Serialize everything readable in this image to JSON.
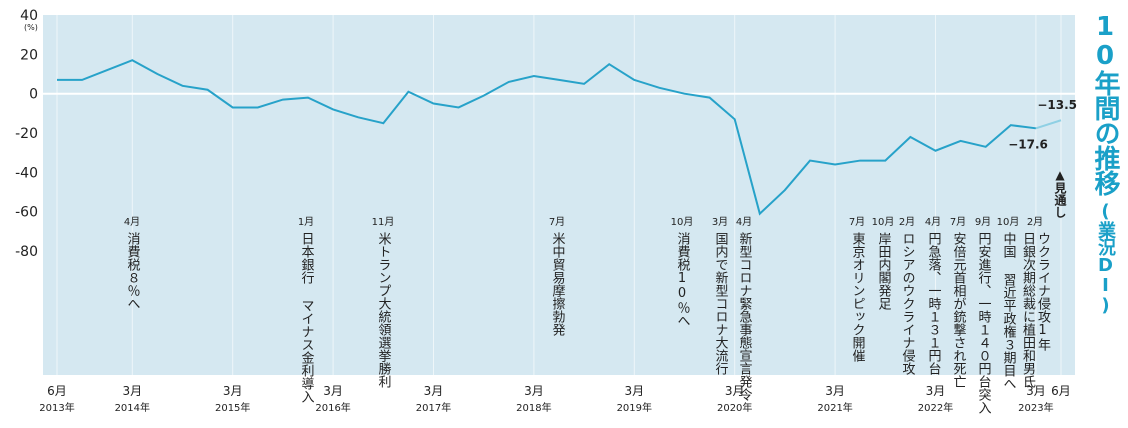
{
  "chart_data": {
    "type": "line",
    "title": "10年間の推移",
    "subtitle": "(業況DI)",
    "y_unit": "(%)",
    "annotation": "▲見通し",
    "categories": [
      "6月",
      null,
      null,
      "3月",
      null,
      null,
      null,
      "3月",
      null,
      null,
      null,
      "3月",
      null,
      null,
      null,
      "3月",
      null,
      null,
      null,
      "3月",
      null,
      null,
      null,
      "3月",
      null,
      null,
      null,
      "3月",
      null,
      null,
      null,
      "3月",
      null,
      null,
      null,
      "3月",
      null,
      null,
      null,
      "3月",
      "6月"
    ],
    "years": [
      "2013年",
      null,
      null,
      "2014年",
      null,
      null,
      null,
      "2015年",
      null,
      null,
      null,
      "2016年",
      null,
      null,
      null,
      "2017年",
      null,
      null,
      null,
      "2018年",
      null,
      null,
      null,
      "2019年",
      null,
      null,
      null,
      "2020年",
      null,
      null,
      null,
      "2021年",
      null,
      null,
      null,
      "2022年",
      null,
      null,
      null,
      "2023年",
      null
    ],
    "series": [
      {
        "color": "#27a2c9",
        "values": [
          7,
          7,
          12,
          17,
          10,
          4,
          2,
          -7,
          -7,
          -3,
          -2,
          -8,
          -12,
          -15,
          1,
          -5,
          -7,
          -1,
          6,
          9,
          7,
          5,
          15,
          7,
          3,
          0,
          -2,
          -13,
          -61,
          -49,
          -34,
          -36,
          -34,
          -34,
          -22,
          -29,
          -24,
          -27,
          -16,
          -17.6,
          null
        ],
        "value_labels": [
          null,
          null,
          null,
          null,
          null,
          null,
          null,
          null,
          null,
          null,
          null,
          null,
          null,
          null,
          null,
          null,
          null,
          null,
          null,
          null,
          null,
          null,
          null,
          null,
          null,
          null,
          null,
          null,
          null,
          null,
          null,
          null,
          null,
          null,
          null,
          null,
          null,
          null,
          null,
          "−17.6",
          null
        ]
      },
      {
        "color": "#8fd0e4",
        "values": [
          null,
          null,
          null,
          null,
          null,
          null,
          null,
          null,
          null,
          null,
          null,
          null,
          null,
          null,
          null,
          null,
          null,
          null,
          null,
          null,
          null,
          null,
          null,
          null,
          null,
          null,
          null,
          null,
          null,
          null,
          null,
          null,
          null,
          null,
          null,
          null,
          null,
          null,
          null,
          -17.6,
          -13.5
        ],
        "value_labels": [
          null,
          null,
          null,
          null,
          null,
          null,
          null,
          null,
          null,
          null,
          null,
          null,
          null,
          null,
          null,
          null,
          null,
          null,
          null,
          null,
          null,
          null,
          null,
          null,
          null,
          null,
          null,
          null,
          null,
          null,
          null,
          null,
          null,
          null,
          null,
          null,
          null,
          null,
          null,
          null,
          "−13.5"
        ]
      }
    ],
    "ylim": [
      -143,
      40
    ],
    "yticks": [
      40,
      20,
      0,
      -20,
      -40,
      -60,
      -80
    ],
    "events": [
      {
        "month": "4月",
        "lines": [
          "消費税８％へ"
        ]
      },
      {
        "month": "1月",
        "lines": [
          "日本銀行 マイナス金利導入"
        ]
      },
      {
        "month": "11月",
        "lines": [
          "米トランプ大統領選挙勝利"
        ]
      },
      {
        "month": "7月",
        "lines": [
          "米中貿易摩擦勃発"
        ]
      },
      {
        "month": "10月",
        "lines": [
          "消費税10％へ"
        ]
      },
      {
        "month": "3月",
        "lines": [
          "国内で新型コロナ大流行"
        ]
      },
      {
        "month": "4月",
        "lines": [
          "新型コロナ緊急事態宣言発令"
        ]
      },
      {
        "month": "7月",
        "lines": [
          "東京オリンピック開催"
        ]
      },
      {
        "month": "10月",
        "lines": [
          "岸田内閣発足"
        ]
      },
      {
        "month": "2月",
        "lines": [
          "ロシアのウクライナ侵攻"
        ]
      },
      {
        "month": "4月",
        "lines": [
          "円急落、一時１３１円台"
        ]
      },
      {
        "month": "7月",
        "lines": [
          "安倍元首相が銃撃され死亡"
        ]
      },
      {
        "month": "9月",
        "lines": [
          "円安進行、一時１４０円台突入"
        ]
      },
      {
        "month": "10月",
        "lines": [
          "中国 習近平政権３期目へ"
        ]
      },
      {
        "month": "2月",
        "lines": [
          "ウクライナ侵攻1年",
          "日銀次期総裁に植田和男氏"
        ]
      }
    ]
  }
}
